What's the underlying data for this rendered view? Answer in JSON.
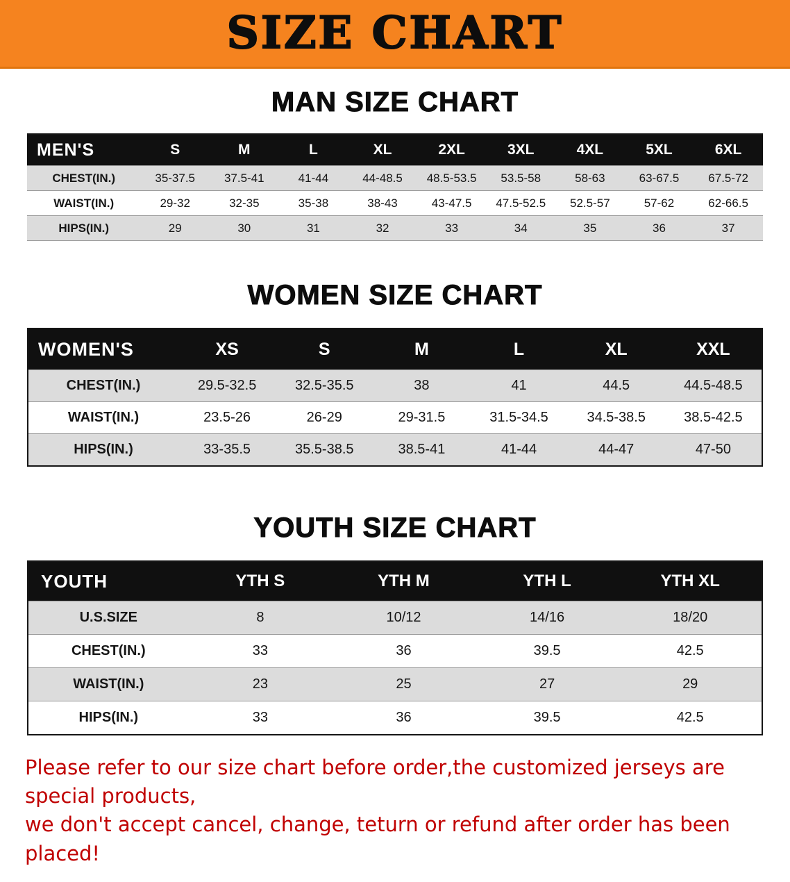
{
  "banner": {
    "title": "SIZE CHART",
    "bg_color": "#F5831F"
  },
  "colors": {
    "table_header_bg": "#101010",
    "row_alt_bg": "#DCDCDC",
    "note_text": "#C00000"
  },
  "tables": [
    {
      "id": "men",
      "title": "MAN SIZE CHART",
      "header": [
        "MEN'S",
        "S",
        "M",
        "L",
        "XL",
        "2XL",
        "3XL",
        "4XL",
        "5XL",
        "6XL"
      ],
      "rows": [
        [
          "CHEST(IN.)",
          "35-37.5",
          "37.5-41",
          "41-44",
          "44-48.5",
          "48.5-53.5",
          "53.5-58",
          "58-63",
          "63-67.5",
          "67.5-72"
        ],
        [
          "WAIST(IN.)",
          "29-32",
          "32-35",
          "35-38",
          "38-43",
          "43-47.5",
          "47.5-52.5",
          "52.5-57",
          "57-62",
          "62-66.5"
        ],
        [
          "HIPS(IN.)",
          "29",
          "30",
          "31",
          "32",
          "33",
          "34",
          "35",
          "36",
          "37"
        ]
      ]
    },
    {
      "id": "women",
      "title": "WOMEN SIZE CHART",
      "header": [
        "WOMEN'S",
        "XS",
        "S",
        "M",
        "L",
        "XL",
        "XXL"
      ],
      "rows": [
        [
          "CHEST(IN.)",
          "29.5-32.5",
          "32.5-35.5",
          "38",
          "41",
          "44.5",
          "44.5-48.5"
        ],
        [
          "WAIST(IN.)",
          "23.5-26",
          "26-29",
          "29-31.5",
          "31.5-34.5",
          "34.5-38.5",
          "38.5-42.5"
        ],
        [
          "HIPS(IN.)",
          "33-35.5",
          "35.5-38.5",
          "38.5-41",
          "41-44",
          "44-47",
          "47-50"
        ]
      ]
    },
    {
      "id": "youth",
      "title": "YOUTH SIZE CHART",
      "header": [
        "YOUTH",
        "YTH S",
        "YTH M",
        "YTH L",
        "YTH XL"
      ],
      "rows": [
        [
          "U.S.SIZE",
          "8",
          "10/12",
          "14/16",
          "18/20"
        ],
        [
          "CHEST(IN.)",
          "33",
          "36",
          "39.5",
          "42.5"
        ],
        [
          "WAIST(IN.)",
          "23",
          "25",
          "27",
          "29"
        ],
        [
          "HIPS(IN.)",
          "33",
          "36",
          "39.5",
          "42.5"
        ]
      ]
    }
  ],
  "note": {
    "line1": "Please refer to our size chart before order,the customized jerseys are special products,",
    "line2": "we don't accept cancel, change, teturn or refund after order has been placed!"
  }
}
